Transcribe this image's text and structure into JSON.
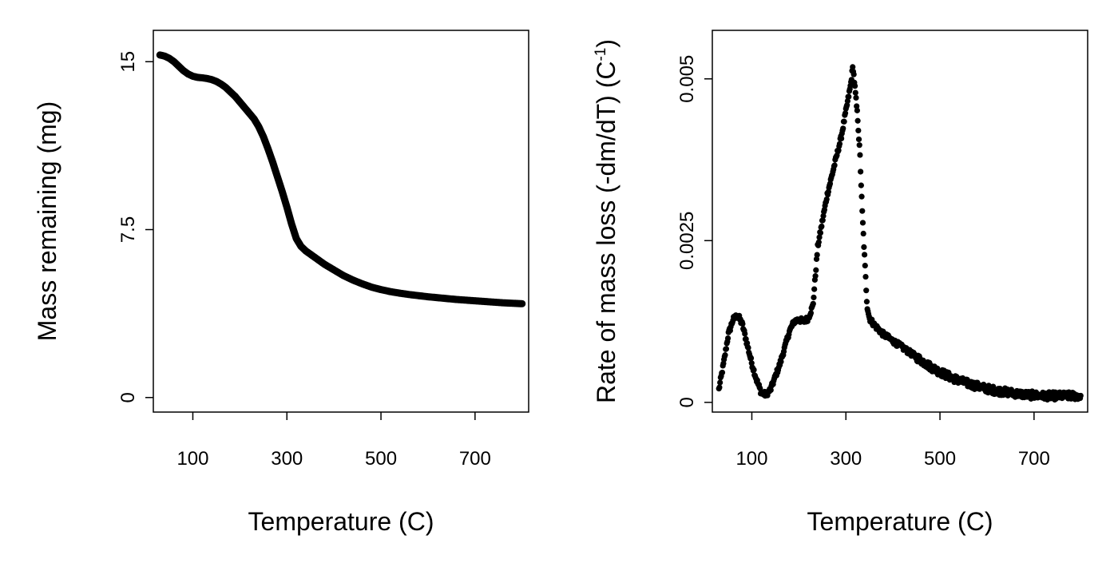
{
  "chart_data": [
    {
      "type": "line",
      "title": "",
      "xlabel": "Temperature (C)",
      "ylabel": "Mass remaining (mg)",
      "xlim": [
        16,
        814
      ],
      "ylim": [
        -0.65,
        16.4
      ],
      "x_ticks": [
        100,
        300,
        500,
        700
      ],
      "x_tick_labels": [
        "100",
        "300",
        "500",
        "700"
      ],
      "y_ticks": [
        0,
        7.5,
        15
      ],
      "y_tick_labels": [
        "0",
        "7.5",
        "15"
      ],
      "grid": false,
      "legend": "none",
      "color": "#000000",
      "series": [
        {
          "x": [
            30,
            40,
            50,
            60,
            70,
            80,
            90,
            100,
            110,
            120,
            130,
            140,
            150,
            160,
            170,
            180,
            190,
            200,
            210,
            220,
            230,
            240,
            250,
            260,
            270,
            280,
            290,
            300,
            310,
            320,
            330,
            340,
            350,
            360,
            370,
            380,
            400,
            420,
            440,
            460,
            480,
            500,
            520,
            540,
            560,
            580,
            600,
            620,
            640,
            660,
            680,
            700,
            720,
            740,
            760,
            780,
            800
          ],
          "y": [
            15.3,
            15.25,
            15.15,
            15.0,
            14.8,
            14.6,
            14.45,
            14.35,
            14.3,
            14.28,
            14.25,
            14.2,
            14.12,
            14.0,
            13.85,
            13.65,
            13.45,
            13.2,
            12.95,
            12.7,
            12.45,
            12.1,
            11.65,
            11.1,
            10.5,
            9.85,
            9.2,
            8.5,
            7.75,
            7.1,
            6.75,
            6.55,
            6.4,
            6.25,
            6.1,
            5.95,
            5.7,
            5.45,
            5.25,
            5.08,
            4.93,
            4.82,
            4.73,
            4.66,
            4.6,
            4.55,
            4.5,
            4.46,
            4.42,
            4.38,
            4.35,
            4.32,
            4.29,
            4.26,
            4.23,
            4.21,
            4.19
          ]
        }
      ]
    },
    {
      "type": "scatter",
      "title": "",
      "xlabel": "Temperature (C)",
      "ylabel": "Rate of mass loss (-dm/dT) (C",
      "ylabel_sup": "-1",
      "ylabel_end": ")",
      "xlim": [
        16,
        814
      ],
      "ylim": [
        -0.00015,
        0.00575
      ],
      "x_ticks": [
        100,
        300,
        500,
        700
      ],
      "x_tick_labels": [
        "100",
        "300",
        "500",
        "700"
      ],
      "y_ticks": [
        0,
        0.0025,
        0.005
      ],
      "y_tick_labels": [
        "0",
        "0.0025",
        "0.005"
      ],
      "grid": false,
      "legend": "none",
      "color": "#000000",
      "anchors": {
        "x": [
          30,
          40,
          50,
          60,
          70,
          80,
          90,
          100,
          110,
          120,
          130,
          140,
          150,
          160,
          170,
          180,
          190,
          200,
          210,
          220,
          230,
          240,
          250,
          260,
          270,
          280,
          290,
          300,
          310,
          315,
          320,
          325,
          330,
          335,
          340,
          345,
          350,
          360,
          380,
          400,
          420,
          440,
          460,
          480,
          500,
          520,
          540,
          560,
          580,
          600,
          620,
          640,
          660,
          680,
          700,
          720,
          740,
          760,
          780,
          800
        ],
        "y": [
          0.0002,
          0.0006,
          0.00105,
          0.00128,
          0.00135,
          0.0012,
          0.0009,
          0.0006,
          0.00035,
          0.00015,
          0.00012,
          0.0002,
          0.0004,
          0.0006,
          0.00085,
          0.0011,
          0.00125,
          0.00128,
          0.00125,
          0.0013,
          0.0015,
          0.0024,
          0.0028,
          0.0032,
          0.0035,
          0.0038,
          0.0041,
          0.0045,
          0.0049,
          0.0052,
          0.0048,
          0.0044,
          0.0038,
          0.0029,
          0.0022,
          0.0015,
          0.0013,
          0.0012,
          0.00105,
          0.00095,
          0.00085,
          0.00075,
          0.00065,
          0.00055,
          0.00047,
          0.0004,
          0.00034,
          0.00029,
          0.00025,
          0.00021,
          0.00018,
          0.00016,
          0.00014,
          0.00012,
          0.00011,
          0.0001,
          0.0001,
          0.0001,
          0.0001,
          0.0001
        ]
      }
    }
  ]
}
